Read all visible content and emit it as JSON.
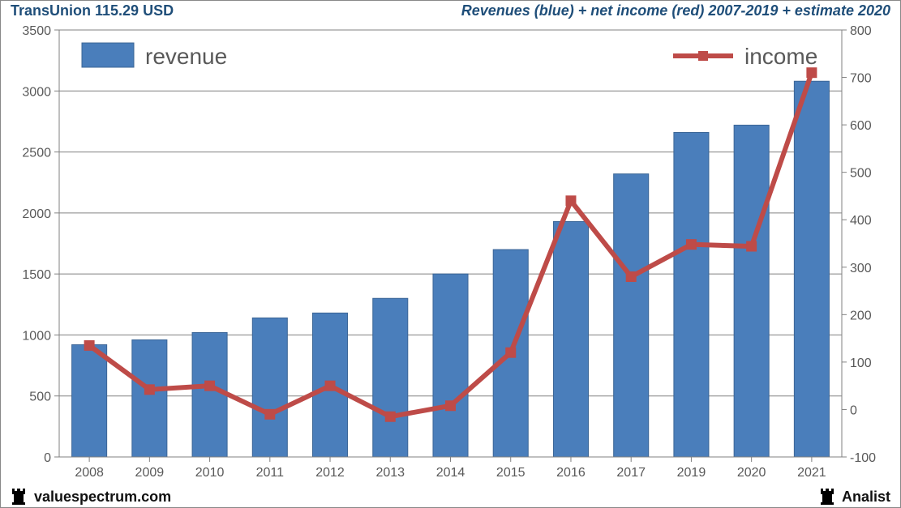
{
  "header": {
    "left": "TransUnion 115.29 USD",
    "right": "Revenues (blue) + net income (red) 2007-2019 + estimate 2020"
  },
  "footer": {
    "left": "valuespectrum.com",
    "right": "Analist"
  },
  "chart": {
    "type": "bar+line",
    "background_color": "#ffffff",
    "plot_border_color": "#808080",
    "grid_color": "#808080",
    "axis_font_size": 16,
    "axis_text_color": "#595959",
    "header_text_color": "#1f4e79",
    "categories": [
      "2008",
      "2009",
      "2010",
      "2011",
      "2012",
      "2013",
      "2014",
      "2015",
      "2016",
      "2017",
      "2019",
      "2020",
      "2021"
    ],
    "left_axis": {
      "min": 0,
      "max": 3500,
      "step": 500
    },
    "right_axis": {
      "min": -100,
      "max": 800,
      "step": 100
    },
    "bars": {
      "label": "revenue",
      "color": "#4a7ebb",
      "border_color": "#3b6596",
      "width_ratio": 0.58,
      "values": [
        920,
        960,
        1020,
        1140,
        1180,
        1300,
        1500,
        1700,
        1930,
        2320,
        2660,
        2720,
        3080
      ]
    },
    "line": {
      "label": "income",
      "color": "#be4b48",
      "marker_color": "#be4b48",
      "marker_size": 12,
      "line_width": 6,
      "values": [
        135,
        42,
        50,
        -10,
        50,
        -15,
        8,
        120,
        440,
        280,
        348,
        344,
        710
      ]
    },
    "legend": {
      "font_size": 28,
      "text_color": "#595959",
      "bar_legend_pos": "top-left",
      "line_legend_pos": "top-right"
    }
  }
}
